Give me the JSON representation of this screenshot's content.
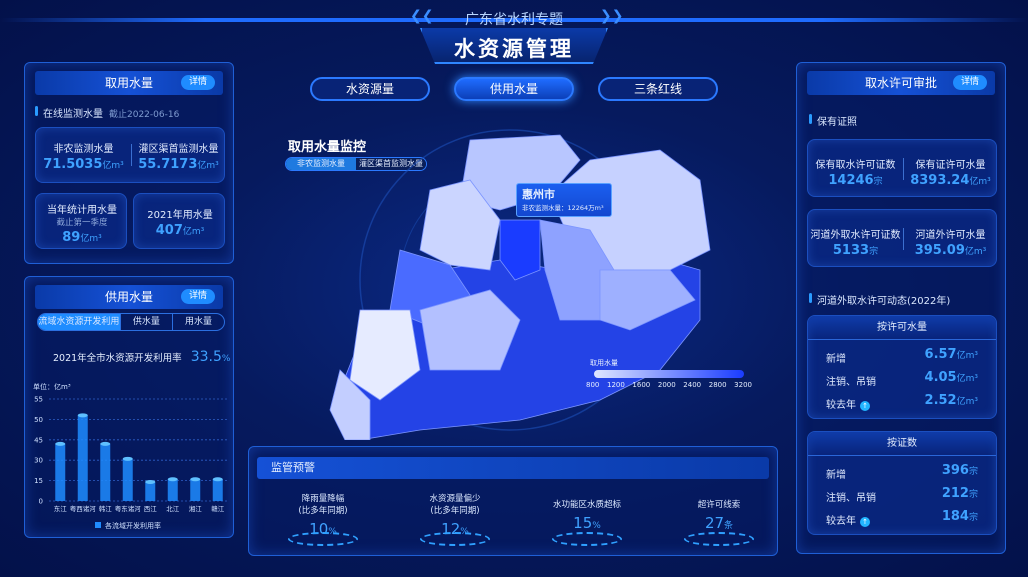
{
  "header": {
    "subtitle": "广东省水利专题",
    "title": "水资源管理"
  },
  "main_tabs": [
    {
      "label": "水资源量",
      "active": false
    },
    {
      "label": "供用水量",
      "active": true
    },
    {
      "label": "三条红线",
      "active": false
    }
  ],
  "left_top": {
    "title": "取用水量",
    "detail": "详情",
    "section": "在线监测水量",
    "section_date": "截止2022-06-16",
    "cards": [
      {
        "label": "非农监测水量",
        "value": "71.5035",
        "unit": "亿m³"
      },
      {
        "label": "灌区渠首监测水量",
        "value": "55.7173",
        "unit": "亿m³"
      },
      {
        "label": "当年统计用水量",
        "note": "截止第一季度",
        "value": "89",
        "unit": "亿m³"
      },
      {
        "label": "2021年用水量",
        "value": "407",
        "unit": "亿m³"
      }
    ]
  },
  "left_bottom": {
    "title": "供用水量",
    "detail": "详情",
    "tabs": [
      "流域水资源开发利用",
      "供水量",
      "用水量"
    ],
    "rate_label": "2021年全市水资源开发利用率",
    "rate_value": "33.5",
    "rate_unit": "%"
  },
  "chart_data": {
    "type": "bar",
    "ylabel": "单位：亿m³",
    "yticks": [
      "0",
      "15",
      "30",
      "45",
      "50",
      "55"
    ],
    "categories": [
      "东江",
      "粤西诸河",
      "韩江",
      "粤东诸河",
      "西江",
      "北江",
      "湘江",
      "赣江"
    ],
    "series": [
      {
        "name": "各流域开发利用率",
        "values": [
          42,
          51,
          42,
          31,
          14,
          16,
          16,
          16
        ]
      }
    ],
    "legend": "bottom",
    "grid": true,
    "color": "#1f8cff"
  },
  "map": {
    "title": "取用水量监控",
    "toggle": [
      "非农监测水量",
      "灌区渠首监测水量"
    ],
    "tooltip_title": "惠州市",
    "tooltip_text": "非农监测水量：12264万m³",
    "legend_title": "取用水量",
    "legend_ticks": [
      "800",
      "1200",
      "1600",
      "2000",
      "2400",
      "2800",
      "3200"
    ],
    "color_low": "#dfe6ff",
    "color_high": "#1a3cff"
  },
  "warning": {
    "title": "监管预警",
    "items": [
      {
        "label": "降雨量降幅",
        "sub": "(比多年同期)",
        "value": "10",
        "unit": "%"
      },
      {
        "label": "水资源量偏少",
        "sub": "(比多年同期)",
        "value": "12",
        "unit": "%"
      },
      {
        "label": "水功能区水质超标",
        "sub": "",
        "value": "15",
        "unit": "%"
      },
      {
        "label": "超许可线索",
        "sub": "",
        "value": "27",
        "unit": "条"
      }
    ]
  },
  "right": {
    "title": "取水许可审批",
    "detail": "详情",
    "section1": "保有证照",
    "cards": [
      {
        "label": "保有取水许可证数",
        "value": "14246",
        "unit": "宗"
      },
      {
        "label": "保有证许可水量",
        "value": "8393.24",
        "unit": "亿m³"
      },
      {
        "label": "河道外取水许可证数",
        "value": "5133",
        "unit": "宗"
      },
      {
        "label": "河道外许可水量",
        "value": "395.09",
        "unit": "亿m³"
      }
    ],
    "section2": "河道外取水许可动态(2022年)",
    "by_volume": {
      "title": "按许可水量",
      "rows": [
        {
          "label": "新增",
          "value": "6.57",
          "unit": "亿m³"
        },
        {
          "label": "注销、吊销",
          "value": "4.05",
          "unit": "亿m³"
        },
        {
          "label": "较去年",
          "value": "2.52",
          "unit": "亿m³"
        }
      ]
    },
    "by_count": {
      "title": "按证数",
      "rows": [
        {
          "label": "新增",
          "value": "396",
          "unit": "宗"
        },
        {
          "label": "注销、吊销",
          "value": "212",
          "unit": "宗"
        },
        {
          "label": "较去年",
          "value": "184",
          "unit": "宗"
        }
      ]
    }
  }
}
